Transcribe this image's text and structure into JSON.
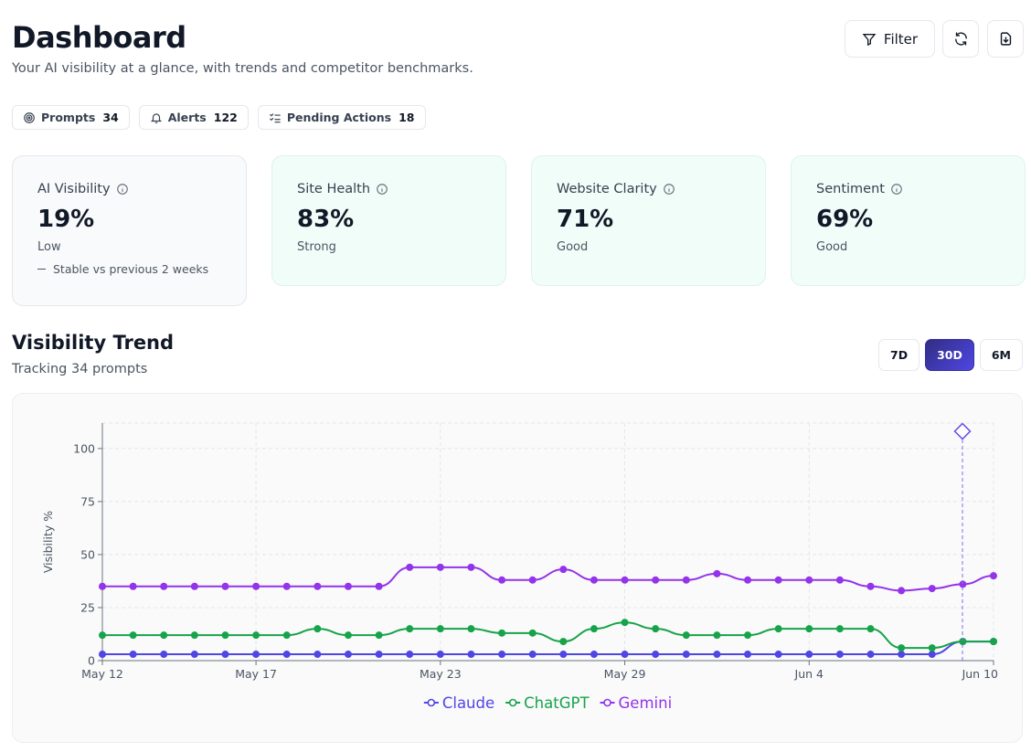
{
  "header": {
    "title": "Dashboard",
    "subtitle": "Your AI visibility at a glance, with trends and competitor benchmarks.",
    "filter_button": "Filter"
  },
  "badges": [
    {
      "label": "Prompts",
      "count": 34
    },
    {
      "label": "Alerts",
      "count": 122
    },
    {
      "label": "Pending Actions",
      "count": 18
    }
  ],
  "metrics": [
    {
      "title": "AI Visibility",
      "value": "19%",
      "status": "Low",
      "note": "Stable vs previous 2 weeks"
    },
    {
      "title": "Site Health",
      "value": "83%",
      "status": "Strong"
    },
    {
      "title": "Website Clarity",
      "value": "71%",
      "status": "Good"
    },
    {
      "title": "Sentiment",
      "value": "69%",
      "status": "Good"
    }
  ],
  "trend": {
    "title": "Visibility Trend",
    "subtitle": "Tracking 34 prompts",
    "ranges": [
      {
        "label": "7D",
        "active": false
      },
      {
        "label": "30D",
        "active": true
      },
      {
        "label": "6M",
        "active": false
      }
    ]
  },
  "chart_data": {
    "type": "line",
    "y_label": "Visibility %",
    "categories": [
      "May 12",
      null,
      null,
      null,
      null,
      "May 17",
      null,
      null,
      null,
      null,
      null,
      "May 23",
      null,
      null,
      null,
      null,
      null,
      "May 29",
      null,
      null,
      null,
      null,
      null,
      "Jun 4",
      null,
      null,
      null,
      null,
      null,
      "Jun 10"
    ],
    "series": [
      {
        "name": "Claude",
        "color": "#4f46e5",
        "values": [
          3,
          3,
          3,
          3,
          3,
          3,
          3,
          3,
          3,
          3,
          3,
          3,
          3,
          3,
          3,
          3,
          3,
          3,
          3,
          3,
          3,
          3,
          3,
          3,
          3,
          3,
          3,
          3,
          9,
          9
        ]
      },
      {
        "name": "ChatGPT",
        "color": "#16a34a",
        "values": [
          12,
          12,
          12,
          12,
          12,
          12,
          12,
          15,
          12,
          12,
          15,
          15,
          15,
          13,
          13,
          9,
          15,
          18,
          15,
          12,
          12,
          12,
          15,
          15,
          15,
          15,
          6,
          6,
          9,
          9
        ]
      },
      {
        "name": "Gemini",
        "color": "#9333ea",
        "values": [
          35,
          35,
          35,
          35,
          35,
          35,
          35,
          35,
          35,
          35,
          44,
          44,
          44,
          38,
          38,
          43,
          38,
          38,
          38,
          38,
          41,
          38,
          38,
          38,
          38,
          35,
          33,
          34,
          36,
          40
        ]
      }
    ],
    "ylim": [
      0,
      112
    ],
    "yticks": [
      0,
      25,
      50,
      75,
      100
    ],
    "grid": true,
    "legend": "bottom"
  }
}
